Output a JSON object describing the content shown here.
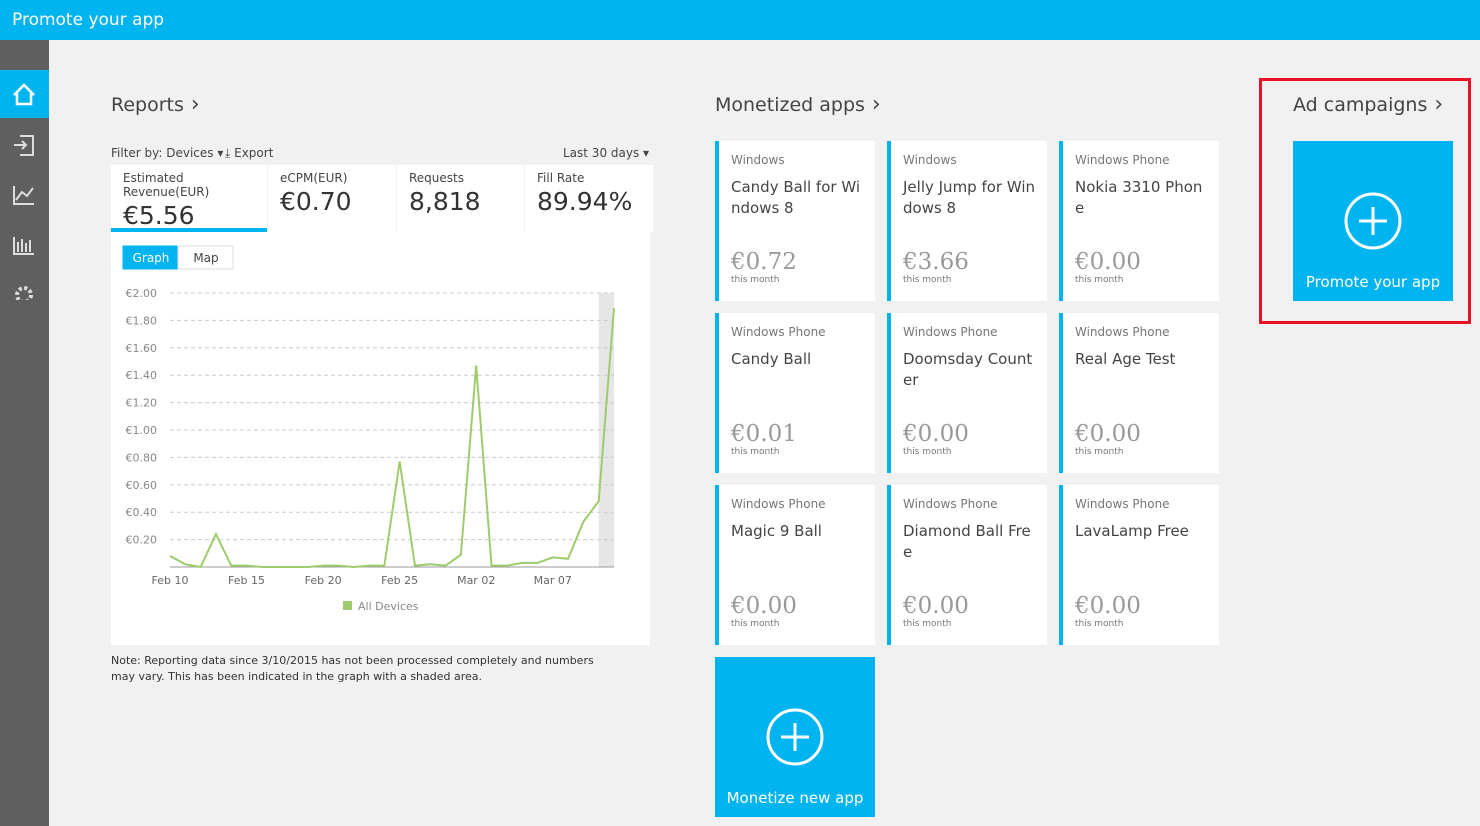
{
  "header": {
    "title": "Promote your app"
  },
  "reports": {
    "title": "Reports",
    "filter": "Filter by: Devices",
    "export": "Export",
    "range": "Last 30 days",
    "metrics": [
      {
        "label": "Estimated Revenue(EUR)",
        "value": "€5.56"
      },
      {
        "label": "eCPM(EUR)",
        "value": "€0.70"
      },
      {
        "label": "Requests",
        "value": "8,818"
      },
      {
        "label": "Fill Rate",
        "value": "89.94%"
      }
    ],
    "tabs": [
      "Graph",
      "Map"
    ],
    "note": "Note: Reporting data since 3/10/2015 has not been processed completely and numbers may vary. This has been indicated in the graph with a shaded area."
  },
  "chart_data": {
    "type": "line",
    "categories": [
      "Feb 10",
      null,
      null,
      null,
      null,
      "Feb 15",
      null,
      null,
      null,
      null,
      "Feb 20",
      null,
      null,
      null,
      null,
      "Feb 25",
      null,
      null,
      null,
      null,
      "Mar 02",
      null,
      null,
      null,
      null,
      "Mar 07",
      null,
      null,
      null,
      null
    ],
    "series": [
      {
        "name": "All Devices",
        "color": "#9ccc6b",
        "values": [
          0.08,
          0.02,
          0.0,
          0.24,
          0.01,
          0.01,
          0.0,
          0.0,
          0.0,
          0.0,
          0.01,
          0.01,
          0.0,
          0.01,
          0.01,
          0.77,
          0.01,
          0.02,
          0.01,
          0.09,
          1.47,
          0.01,
          0.01,
          0.03,
          0.03,
          0.07,
          0.06,
          0.33,
          0.48,
          1.89
        ]
      }
    ],
    "ylim": [
      0,
      2
    ],
    "yticks": [
      {
        "value": 0.2,
        "label": "€0.20"
      },
      {
        "value": 0.4,
        "label": "€0.40"
      },
      {
        "value": 0.6,
        "label": "€0.60"
      },
      {
        "value": 0.8,
        "label": "€0.80"
      },
      {
        "value": 1.0,
        "label": "€1.00"
      },
      {
        "value": 1.2,
        "label": "€1.20"
      },
      {
        "value": 1.4,
        "label": "€1.40"
      },
      {
        "value": 1.6,
        "label": "€1.60"
      },
      {
        "value": 1.8,
        "label": "€1.80"
      },
      {
        "value": 2.0,
        "label": "€2.00"
      }
    ],
    "grid": true
  },
  "monetized": {
    "title": "Monetized apps",
    "apps": [
      {
        "platform": "Windows",
        "name": "Candy Ball for Windows 8",
        "amount": "€0.72",
        "period": "this month"
      },
      {
        "platform": "Windows",
        "name": "Jelly Jump for Windows 8",
        "amount": "€3.66",
        "period": "this month"
      },
      {
        "platform": "Windows Phone",
        "name": "Nokia 3310 Phone",
        "amount": "€0.00",
        "period": "this month"
      },
      {
        "platform": "Windows Phone",
        "name": "Candy Ball",
        "amount": "€0.01",
        "period": "this month"
      },
      {
        "platform": "Windows Phone",
        "name": "Doomsday Counter",
        "amount": "€0.00",
        "period": "this month"
      },
      {
        "platform": "Windows Phone",
        "name": "Real Age Test",
        "amount": "€0.00",
        "period": "this month"
      },
      {
        "platform": "Windows Phone",
        "name": "Magic 9 Ball",
        "amount": "€0.00",
        "period": "this month"
      },
      {
        "platform": "Windows Phone",
        "name": "Diamond Ball Free",
        "amount": "€0.00",
        "period": "this month"
      },
      {
        "platform": "Windows Phone",
        "name": "LavaLamp Free",
        "amount": "€0.00",
        "period": "this month"
      }
    ],
    "new_app": "Monetize new app"
  },
  "campaigns": {
    "title": "Ad campaigns",
    "promote": "Promote your app"
  }
}
